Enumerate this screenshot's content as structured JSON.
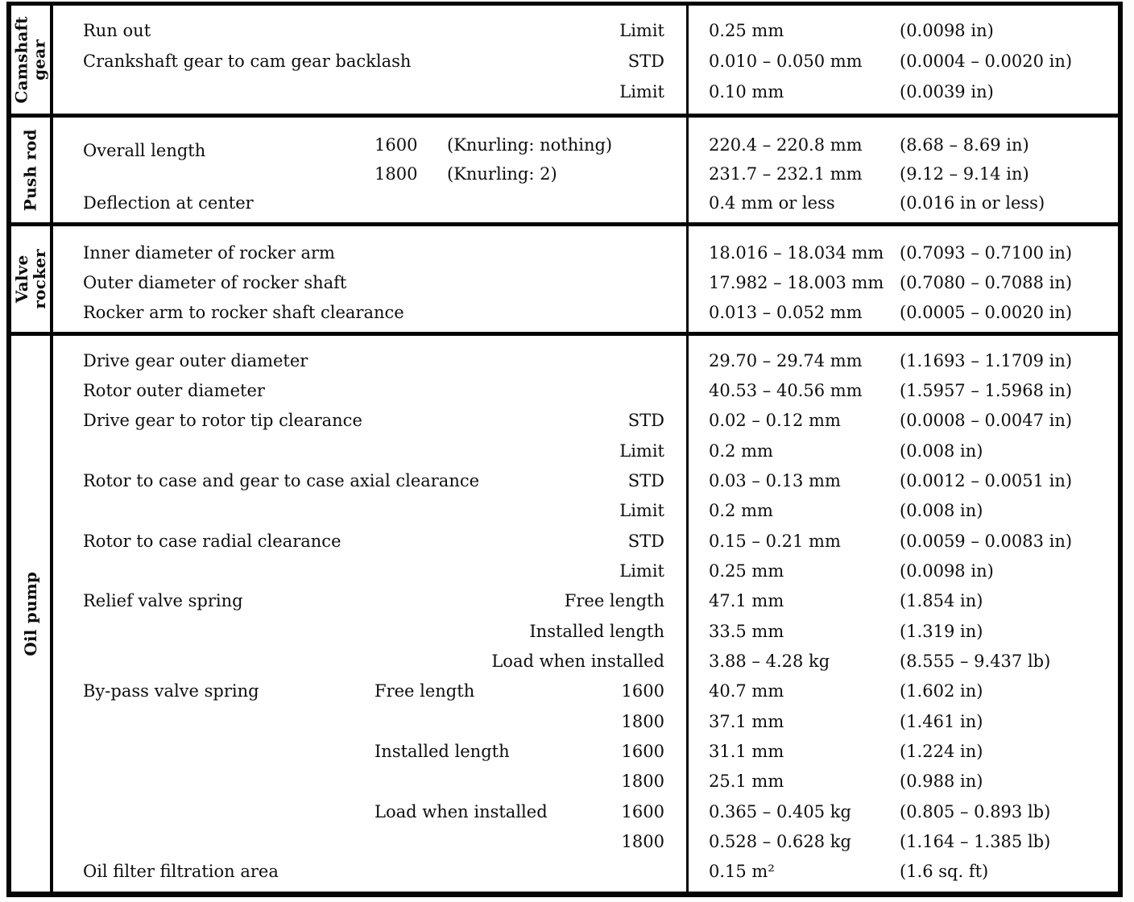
{
  "table": {
    "sections": [
      {
        "label": "Camshaft\ngear",
        "rows": [
          {
            "desc": "Run out",
            "qual": "Limit",
            "metric": "0.25 mm",
            "imperial": "(0.0098 in)"
          },
          {
            "desc": "Crankshaft gear to cam gear backlash",
            "qual": "STD",
            "metric": "0.010 – 0.050 mm",
            "imperial": "(0.0004 – 0.0020 in)"
          },
          {
            "qual": "Limit",
            "metric": "0.10 mm",
            "imperial": "(0.0039 in)"
          }
        ]
      },
      {
        "label": "Push rod",
        "rows": [
          {
            "desc": "Overall length",
            "sub": "1600",
            "note": "(Knurling: nothing)",
            "metric": "220.4 – 220.8 mm",
            "imperial": "(8.68 – 8.69 in)"
          },
          {
            "sub": "1800",
            "note": "(Knurling: 2)",
            "metric": "231.7 – 232.1 mm",
            "imperial": "(9.12 – 9.14 in)"
          },
          {
            "desc": "Deflection at center",
            "metric": "0.4 mm or less",
            "imperial": "(0.016 in or less)"
          }
        ]
      },
      {
        "label": "Valve\nrocker",
        "rows": [
          {
            "desc": "Inner diameter of rocker arm",
            "metric": "18.016 – 18.034 mm",
            "imperial": "(0.7093 – 0.7100 in)"
          },
          {
            "desc": "Outer diameter of rocker shaft",
            "metric": "17.982 – 18.003 mm",
            "imperial": "(0.7080 – 0.7088 in)"
          },
          {
            "desc": "Rocker arm to rocker shaft clearance",
            "metric": "0.013 – 0.052 mm",
            "imperial": "(0.0005 – 0.0020 in)"
          }
        ]
      },
      {
        "label": "Oil pump",
        "rows": [
          {
            "desc": "Drive gear outer diameter",
            "metric": "29.70 – 29.74 mm",
            "imperial": "(1.1693 – 1.1709 in)"
          },
          {
            "desc": "Rotor outer diameter",
            "metric": "40.53 – 40.56 mm",
            "imperial": "(1.5957 – 1.5968 in)"
          },
          {
            "desc": "Drive gear to rotor tip clearance",
            "qual": "STD",
            "metric": "0.02 – 0.12 mm",
            "imperial": "(0.0008 – 0.0047 in)"
          },
          {
            "qual": "Limit",
            "metric": "0.2 mm",
            "imperial": "(0.008 in)"
          },
          {
            "desc": "Rotor to case and gear to case axial clearance",
            "qual": "STD",
            "metric": "0.03 – 0.13 mm",
            "imperial": "(0.0012 – 0.0051 in)"
          },
          {
            "qual": "Limit",
            "metric": "0.2 mm",
            "imperial": "(0.008 in)"
          },
          {
            "desc": "Rotor to case radial clearance",
            "qual": "STD",
            "metric": "0.15 – 0.21 mm",
            "imperial": "(0.0059 – 0.0083 in)"
          },
          {
            "qual": "Limit",
            "metric": "0.25 mm",
            "imperial": "(0.0098 in)"
          },
          {
            "desc": "Relief valve spring",
            "qual": "Free length",
            "metric": "47.1 mm",
            "imperial": "(1.854 in)"
          },
          {
            "qual": "Installed length",
            "metric": "33.5 mm",
            "imperial": "(1.319 in)"
          },
          {
            "qual": "Load when installed",
            "metric": "3.88 – 4.28 kg",
            "imperial": "(8.555 – 9.437 lb)"
          },
          {
            "desc": "By-pass valve spring",
            "sub": "Free length",
            "qual": "1600",
            "metric": "40.7 mm",
            "imperial": "(1.602 in)"
          },
          {
            "qual": "1800",
            "metric": "37.1 mm",
            "imperial": "(1.461 in)"
          },
          {
            "sub": "Installed length",
            "qual": "1600",
            "metric": "31.1 mm",
            "imperial": "(1.224 in)"
          },
          {
            "qual": "1800",
            "metric": "25.1 mm",
            "imperial": "(0.988 in)"
          },
          {
            "sub": "Load when installed",
            "qual": "1600",
            "metric": "0.365 – 0.405 kg",
            "imperial": "(0.805 – 0.893 lb)"
          },
          {
            "qual": "1800",
            "metric": "0.528 – 0.628 kg",
            "imperial": "(1.164 – 1.385 lb)"
          },
          {
            "desc": "Oil filter filtration area",
            "metric": "0.15 m²",
            "imperial": "(1.6 sq. ft)"
          }
        ]
      }
    ]
  }
}
